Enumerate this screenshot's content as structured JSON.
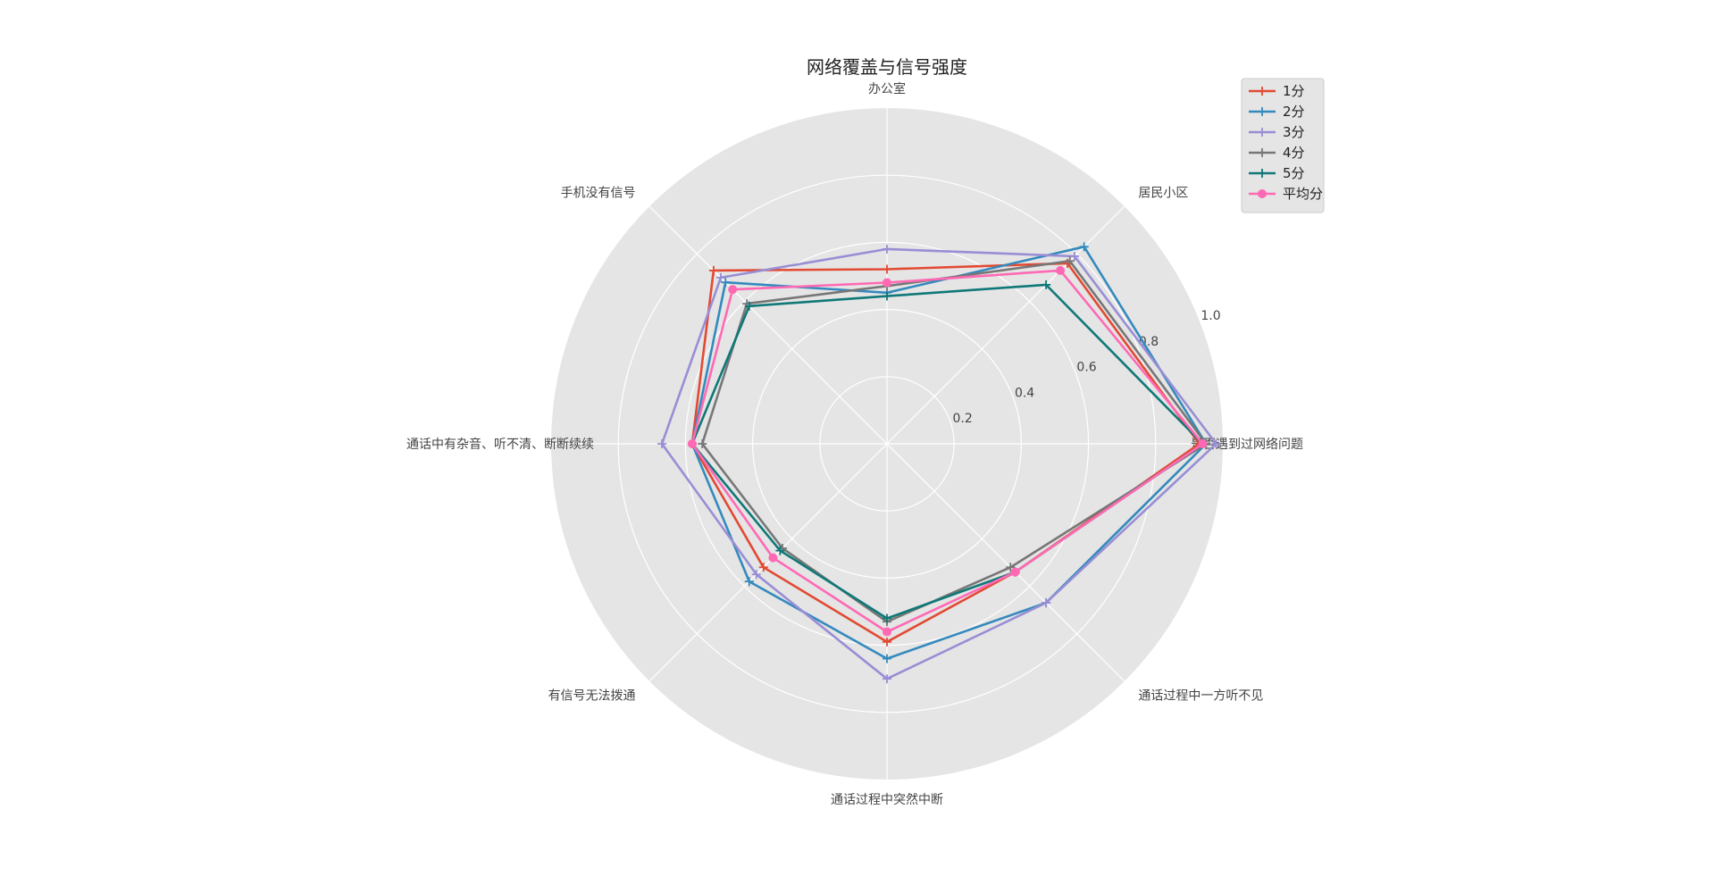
{
  "chart_data": {
    "type": "radar",
    "title": "网络覆盖与信号强度",
    "categories": [
      "是否遇到过网络问题",
      "居民小区",
      "办公室",
      "手机没有信号",
      "通话中有杂音、听不清、断断续续",
      "有信号无法拨通",
      "通话过程中突然中断",
      "通话过程中一方听不见"
    ],
    "rlim": [
      0,
      1.0
    ],
    "rticks": [
      0.2,
      0.4,
      0.6,
      0.8,
      1.0
    ],
    "rtick_labels": [
      "0.2",
      "0.4",
      "0.6",
      "0.8",
      "1.0"
    ],
    "grid": true,
    "legend_position": "top-right",
    "series": [
      {
        "name": "1分",
        "color": "#E24A33",
        "marker": "plus",
        "values": [
          0.93,
          0.76,
          0.52,
          0.73,
          0.58,
          0.52,
          0.59,
          0.54
        ]
      },
      {
        "name": "2分",
        "color": "#348ABD",
        "marker": "plus",
        "values": [
          0.95,
          0.83,
          0.45,
          0.68,
          0.58,
          0.58,
          0.64,
          0.67
        ]
      },
      {
        "name": "3分",
        "color": "#988ED5",
        "marker": "plus",
        "values": [
          0.98,
          0.79,
          0.58,
          0.7,
          0.67,
          0.55,
          0.7,
          0.67
        ]
      },
      {
        "name": "4分",
        "color": "#777777",
        "marker": "plus",
        "values": [
          0.95,
          0.77,
          0.47,
          0.59,
          0.55,
          0.44,
          0.53,
          0.52
        ]
      },
      {
        "name": "5分",
        "color": "#107878",
        "marker": "plus",
        "values": [
          0.94,
          0.67,
          0.44,
          0.58,
          0.58,
          0.45,
          0.52,
          0.54
        ]
      },
      {
        "name": "平均分",
        "color": "#FF69B4",
        "marker": "circle",
        "values": [
          0.94,
          0.73,
          0.48,
          0.65,
          0.58,
          0.48,
          0.56,
          0.54
        ]
      }
    ]
  }
}
